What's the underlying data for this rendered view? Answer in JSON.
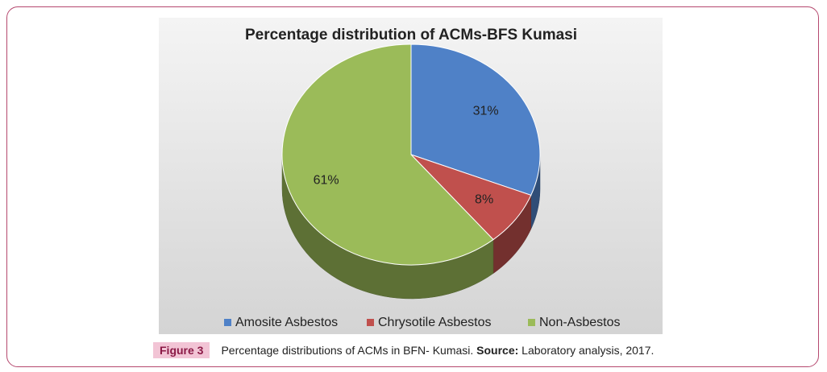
{
  "chart_data": {
    "type": "pie",
    "title": "Percentage distribution of ACMs-BFS Kumasi",
    "categories": [
      "Amosite Asbestos",
      "Chrysotile Asbestos",
      "Non-Asbestos"
    ],
    "values": [
      31,
      8,
      61
    ],
    "value_labels": [
      "31%",
      "8%",
      "61%"
    ],
    "colors": [
      "#4f81c7",
      "#c0504d",
      "#9bbb59"
    ],
    "legend": "bottom"
  },
  "caption": {
    "label": "Figure 3",
    "text": "Percentage distributions of ACMs in BFN- Kumasi.",
    "source_label": "Source:",
    "source": "Laboratory analysis, 2017."
  }
}
